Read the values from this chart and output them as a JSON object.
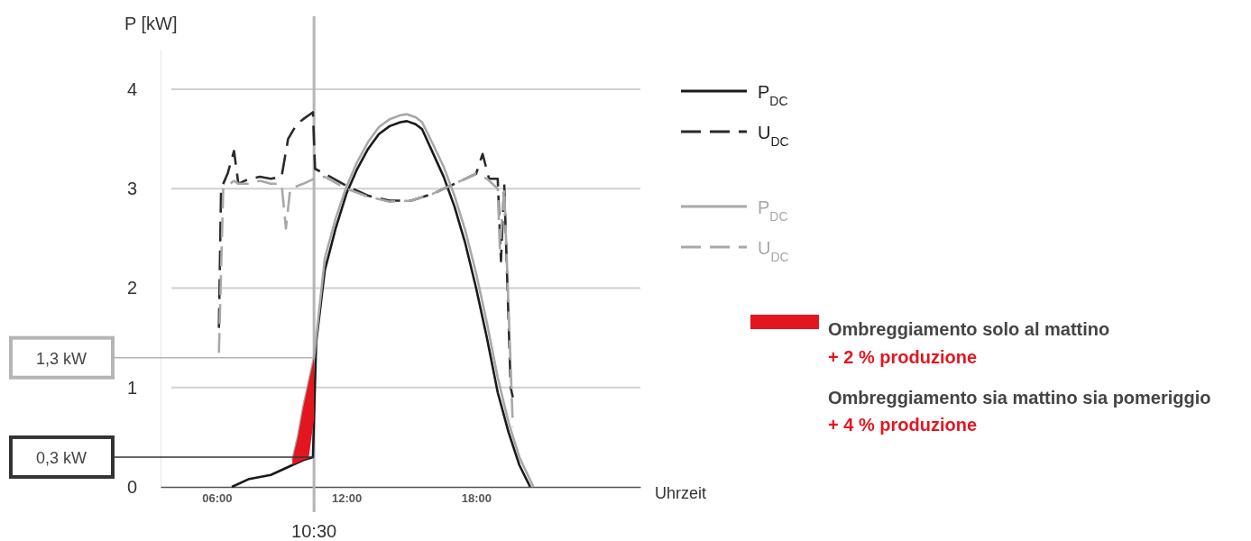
{
  "chart_data": {
    "type": "line",
    "xlabel": "Uhrzeit",
    "ylabel": "P [kW]",
    "xlim": [
      3.4,
      25.6
    ],
    "ylim": [
      0,
      4.4
    ],
    "xticks": [
      {
        "value": 6,
        "label": "06:00"
      },
      {
        "value": 12,
        "label": "12:00"
      },
      {
        "value": 18,
        "label": "18:00"
      }
    ],
    "yticks": [
      0,
      1,
      2,
      3,
      4
    ],
    "grid": "y",
    "legend": "right",
    "series": [
      {
        "name": "P$_{DC}$",
        "color": "#1a1a1a",
        "line_style": "solid",
        "x": [
          6.7,
          7.5,
          8.5,
          9.3,
          10,
          10.45,
          10.6,
          11,
          11.5,
          12,
          12.5,
          13,
          13.5,
          14,
          14.5,
          14.8,
          15.2,
          15.5,
          16,
          16.5,
          17,
          17.5,
          18,
          18.5,
          19,
          19.5,
          20,
          20.5
        ],
        "values": [
          0,
          0.08,
          0.12,
          0.2,
          0.27,
          0.3,
          1.45,
          2.18,
          2.6,
          2.95,
          3.2,
          3.4,
          3.55,
          3.63,
          3.67,
          3.68,
          3.65,
          3.6,
          3.36,
          3.12,
          2.82,
          2.45,
          2.0,
          1.5,
          0.95,
          0.55,
          0.22,
          0
        ]
      },
      {
        "name": "U$_{DC}$",
        "color": "#2a2a2a",
        "line_style": "dashed",
        "x": [
          6.1,
          6.2,
          6.5,
          6.8,
          7,
          7.5,
          8,
          8.5,
          9,
          9.3,
          9.7,
          10,
          10.45,
          10.55,
          11,
          12,
          13,
          14,
          15,
          16,
          17,
          18,
          18.3,
          18.6,
          19,
          19.15,
          19.3,
          19.6,
          19.7
        ],
        "values": [
          1.6,
          3.0,
          3.15,
          3.38,
          3.05,
          3.1,
          3.12,
          3.1,
          3.12,
          3.5,
          3.65,
          3.7,
          3.77,
          3.2,
          3.15,
          3.03,
          2.93,
          2.88,
          2.88,
          2.95,
          3.05,
          3.15,
          3.35,
          3.1,
          3.1,
          2.27,
          3.05,
          1.0,
          0.9
        ]
      },
      {
        "name": "P$_{DC}$",
        "color": "#a8a8a8",
        "line_style": "solid",
        "x": [
          9.5,
          9.75,
          10,
          10.25,
          10.5,
          11,
          11.5,
          12,
          12.5,
          13,
          13.5,
          14,
          14.5,
          14.8,
          15.2,
          15.5,
          16,
          16.5,
          17,
          17.5,
          18,
          18.5,
          19,
          19.5,
          20,
          20.65
        ],
        "values": [
          0.27,
          0.5,
          0.8,
          1.05,
          1.3,
          2.3,
          2.7,
          3.02,
          3.27,
          3.47,
          3.62,
          3.7,
          3.74,
          3.75,
          3.72,
          3.67,
          3.45,
          3.22,
          2.93,
          2.58,
          2.15,
          1.65,
          1.1,
          0.65,
          0.3,
          0
        ]
      },
      {
        "name": "U$_{DC}$",
        "color": "#a8a8a8",
        "line_style": "dashed",
        "x": [
          6.1,
          6.3,
          6.8,
          7,
          7.5,
          8,
          8.5,
          9,
          9.2,
          9.4,
          10,
          10.5,
          11,
          12,
          13,
          14,
          15,
          16,
          17,
          18,
          18.5,
          19,
          19.1,
          19.3,
          19.7
        ],
        "values": [
          1.35,
          3.0,
          3.08,
          3.05,
          3.05,
          3.08,
          3.05,
          3.05,
          2.6,
          3.0,
          3.05,
          3.1,
          3.12,
          3.0,
          2.92,
          2.87,
          2.88,
          2.95,
          3.05,
          3.15,
          3.1,
          3.0,
          2.4,
          3.0,
          0.6
        ]
      },
      {
        "type": "area",
        "name": "Ombreggiamento solo al mattino",
        "color": "#e3161f",
        "x": [
          9.5,
          9.75,
          10,
          10.25,
          10.5
        ],
        "values": [
          0.27,
          0.5,
          0.8,
          1.05,
          1.3
        ]
      }
    ],
    "ref_lines": [
      {
        "axis": "x",
        "value": 10.5,
        "label": "10:30",
        "color": "#b5b5b5"
      },
      {
        "axis": "y",
        "value": 1.3,
        "label": "1,3 kW",
        "color": "#b5b5b5"
      },
      {
        "axis": "y",
        "value": 0.3,
        "label": "0,3 kW",
        "color": "#333333"
      }
    ],
    "annotations": [
      "+ 2 % produzione",
      "Ombreggiamento sia mattino sia pomeriggio",
      "+ 4 % produzione"
    ]
  }
}
